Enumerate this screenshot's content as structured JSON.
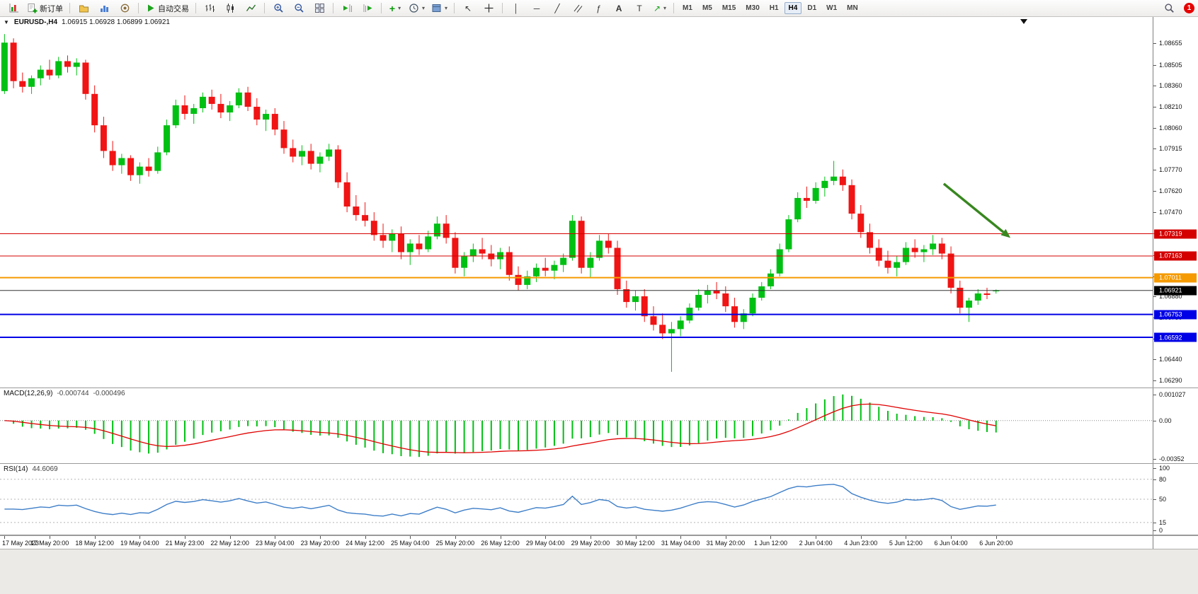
{
  "toolbar": {
    "new_order_label": "新订单",
    "autotrade_label": "自动交易",
    "timeframes": [
      "M1",
      "M5",
      "M15",
      "M30",
      "H1",
      "H4",
      "D1",
      "W1",
      "MN"
    ],
    "active_timeframe": "H4",
    "notification_count": "1"
  },
  "chart_data": {
    "type": "candlestick",
    "header": {
      "symbol": "EURUSD-,H4",
      "ohlc": "1.06915 1.06928 1.06899 1.06921"
    },
    "colors": {
      "up": "#00c013",
      "down": "#f01414",
      "wick_up": "#00c013",
      "wick_down": "#f01414"
    },
    "y_view": [
      1.0624,
      1.0884
    ],
    "y_tick_labels": [
      "1.08655",
      "1.08505",
      "1.08360",
      "1.08210",
      "1.08060",
      "1.07915",
      "1.07770",
      "1.07620",
      "1.07470",
      "1.07320",
      "1.07170",
      "1.07020",
      "1.06880",
      "1.06730",
      "1.06580",
      "1.06440",
      "1.06290"
    ],
    "levels": [
      {
        "price": 1.07319,
        "label": "1.07319",
        "color": "#d40000",
        "width": 1
      },
      {
        "price": 1.07163,
        "label": "1.07163",
        "color": "#d40000",
        "width": 1
      },
      {
        "price": 1.07011,
        "label": "1.07011",
        "color": "#f59a00",
        "width": 2
      },
      {
        "price": 1.06753,
        "label": "1.06753",
        "color": "#0000e6",
        "width": 2
      },
      {
        "price": 1.06592,
        "label": "1.06592",
        "color": "#0000e6",
        "width": 2
      }
    ],
    "current_price": {
      "value": 1.06921,
      "label": "1.06921",
      "line_color": "#333333",
      "badge_color": "#000000"
    },
    "annotation_arrow": {
      "from_index": 104.2,
      "from_price": 1.0767,
      "to_index": 111.6,
      "to_price": 1.0729,
      "color": "#38871f"
    },
    "x_labels": [
      "17 May 2023",
      "17 May 20:00",
      "18 May 12:00",
      "19 May 04:00",
      "21 May 23:00",
      "22 May 12:00",
      "23 May 04:00",
      "23 May 20:00",
      "24 May 12:00",
      "25 May 04:00",
      "25 May 20:00",
      "26 May 12:00",
      "29 May 04:00",
      "29 May 20:00",
      "30 May 12:00",
      "31 May 04:00",
      "31 May 20:00",
      "1 Jun 12:00",
      "2 Jun 04:00",
      "4 Jun 23:00",
      "5 Jun 12:00",
      "6 Jun 04:00",
      "6 Jun 20:00"
    ],
    "x_label_every": 5,
    "candles": [
      [
        1.0832,
        1.0872,
        1.083,
        1.0866
      ],
      [
        1.0866,
        1.0869,
        1.0834,
        1.0839
      ],
      [
        1.0839,
        1.0845,
        1.0831,
        1.0835
      ],
      [
        1.0835,
        1.0843,
        1.083,
        1.0841
      ],
      [
        1.0841,
        1.085,
        1.0836,
        1.0847
      ],
      [
        1.0847,
        1.0854,
        1.084,
        1.0843
      ],
      [
        1.0843,
        1.0856,
        1.0841,
        1.0853
      ],
      [
        1.0853,
        1.0857,
        1.0845,
        1.0849
      ],
      [
        1.0849,
        1.0855,
        1.0843,
        1.0852
      ],
      [
        1.0852,
        1.0854,
        1.0826,
        1.083
      ],
      [
        1.083,
        1.0836,
        1.0803,
        1.0808
      ],
      [
        1.0808,
        1.0814,
        1.0785,
        1.079
      ],
      [
        1.079,
        1.0797,
        1.0776,
        1.078
      ],
      [
        1.078,
        1.0788,
        1.0774,
        1.0785
      ],
      [
        1.0785,
        1.0787,
        1.0769,
        1.0773
      ],
      [
        1.0773,
        1.0782,
        1.0767,
        1.0779
      ],
      [
        1.0779,
        1.0785,
        1.0772,
        1.0776
      ],
      [
        1.0776,
        1.0793,
        1.0774,
        1.0789
      ],
      [
        1.0789,
        1.0812,
        1.0787,
        1.0808
      ],
      [
        1.0808,
        1.0826,
        1.0806,
        1.0822
      ],
      [
        1.0822,
        1.0829,
        1.0812,
        1.0816
      ],
      [
        1.0816,
        1.0823,
        1.0809,
        1.082
      ],
      [
        1.082,
        1.0831,
        1.0817,
        1.0828
      ],
      [
        1.0828,
        1.0833,
        1.0819,
        1.0823
      ],
      [
        1.0823,
        1.083,
        1.0813,
        1.0817
      ],
      [
        1.0817,
        1.0825,
        1.0811,
        1.0822
      ],
      [
        1.0822,
        1.0834,
        1.082,
        1.0831
      ],
      [
        1.0831,
        1.0835,
        1.0818,
        1.0821
      ],
      [
        1.0821,
        1.0827,
        1.0808,
        1.0812
      ],
      [
        1.0812,
        1.0819,
        1.0804,
        1.0816
      ],
      [
        1.0816,
        1.082,
        1.0801,
        1.0805
      ],
      [
        1.0805,
        1.0811,
        1.0788,
        1.0792
      ],
      [
        1.0792,
        1.0798,
        1.0782,
        1.0786
      ],
      [
        1.0786,
        1.0794,
        1.078,
        1.079
      ],
      [
        1.079,
        1.0795,
        1.0777,
        1.0781
      ],
      [
        1.0781,
        1.0789,
        1.0775,
        1.0786
      ],
      [
        1.0786,
        1.0795,
        1.0783,
        1.0791
      ],
      [
        1.0791,
        1.0794,
        1.0764,
        1.0768
      ],
      [
        1.0768,
        1.0775,
        1.0747,
        1.0751
      ],
      [
        1.0751,
        1.0759,
        1.0741,
        1.0745
      ],
      [
        1.0745,
        1.0754,
        1.0737,
        1.0741
      ],
      [
        1.0741,
        1.0747,
        1.0727,
        1.0731
      ],
      [
        1.0731,
        1.0739,
        1.0722,
        1.0727
      ],
      [
        1.0727,
        1.0735,
        1.0719,
        1.0732
      ],
      [
        1.0732,
        1.0737,
        1.0714,
        1.0719
      ],
      [
        1.0719,
        1.0728,
        1.071,
        1.0725
      ],
      [
        1.0725,
        1.0731,
        1.0717,
        1.0721
      ],
      [
        1.0721,
        1.0734,
        1.0719,
        1.073
      ],
      [
        1.073,
        1.0744,
        1.0728,
        1.0739
      ],
      [
        1.0739,
        1.0745,
        1.0725,
        1.0729
      ],
      [
        1.0729,
        1.0733,
        1.0704,
        1.0708
      ],
      [
        1.0708,
        1.0719,
        1.0702,
        1.0716
      ],
      [
        1.0716,
        1.0725,
        1.0712,
        1.0721
      ],
      [
        1.0721,
        1.0729,
        1.0714,
        1.0718
      ],
      [
        1.0718,
        1.0724,
        1.0709,
        1.0714
      ],
      [
        1.0714,
        1.0722,
        1.0707,
        1.0719
      ],
      [
        1.0719,
        1.0723,
        1.0699,
        1.0703
      ],
      [
        1.0703,
        1.0709,
        1.0692,
        1.0696
      ],
      [
        1.0696,
        1.0706,
        1.0693,
        1.0702
      ],
      [
        1.0702,
        1.0711,
        1.0698,
        1.0708
      ],
      [
        1.0708,
        1.0715,
        1.0702,
        1.0706
      ],
      [
        1.0706,
        1.0713,
        1.07,
        1.071
      ],
      [
        1.071,
        1.0718,
        1.0705,
        1.0715
      ],
      [
        1.0715,
        1.0745,
        1.0713,
        1.0741
      ],
      [
        1.0741,
        1.0744,
        1.0704,
        1.0708
      ],
      [
        1.0708,
        1.0719,
        1.0701,
        1.0715
      ],
      [
        1.0715,
        1.0731,
        1.0713,
        1.0727
      ],
      [
        1.0727,
        1.0732,
        1.0718,
        1.0722
      ],
      [
        1.0722,
        1.0727,
        1.0689,
        1.0693
      ],
      [
        1.0693,
        1.0699,
        1.068,
        1.0684
      ],
      [
        1.0684,
        1.0692,
        1.0678,
        1.0688
      ],
      [
        1.0688,
        1.0693,
        1.067,
        1.0674
      ],
      [
        1.0674,
        1.0681,
        1.0664,
        1.0668
      ],
      [
        1.0668,
        1.0676,
        1.0658,
        1.0662
      ],
      [
        1.0662,
        1.067,
        1.0635,
        1.0665
      ],
      [
        1.0665,
        1.0674,
        1.066,
        1.0671
      ],
      [
        1.0671,
        1.0683,
        1.0669,
        1.068
      ],
      [
        1.068,
        1.0693,
        1.0678,
        1.0689
      ],
      [
        1.0689,
        1.0696,
        1.0683,
        1.0692
      ],
      [
        1.0692,
        1.0698,
        1.0686,
        1.069
      ],
      [
        1.069,
        1.0695,
        1.0677,
        1.0681
      ],
      [
        1.0681,
        1.0687,
        1.0666,
        1.067
      ],
      [
        1.067,
        1.0679,
        1.0665,
        1.0676
      ],
      [
        1.0676,
        1.069,
        1.0674,
        1.0687
      ],
      [
        1.0687,
        1.0698,
        1.0685,
        1.0695
      ],
      [
        1.0695,
        1.0707,
        1.0693,
        1.0704
      ],
      [
        1.0704,
        1.0725,
        1.0702,
        1.0721
      ],
      [
        1.0721,
        1.0745,
        1.0719,
        1.0742
      ],
      [
        1.0742,
        1.0761,
        1.074,
        1.0757
      ],
      [
        1.0757,
        1.0765,
        1.075,
        1.0755
      ],
      [
        1.0755,
        1.0768,
        1.0753,
        1.0764
      ],
      [
        1.0764,
        1.0772,
        1.0758,
        1.0769
      ],
      [
        1.0769,
        1.0783,
        1.0766,
        1.0772
      ],
      [
        1.0772,
        1.0777,
        1.0762,
        1.0766
      ],
      [
        1.0766,
        1.077,
        1.0742,
        1.0746
      ],
      [
        1.0746,
        1.0752,
        1.0729,
        1.0733
      ],
      [
        1.0733,
        1.0739,
        1.0718,
        1.0722
      ],
      [
        1.0722,
        1.0728,
        1.0709,
        1.0713
      ],
      [
        1.0713,
        1.072,
        1.0704,
        1.0708
      ],
      [
        1.0708,
        1.0716,
        1.0702,
        1.0712
      ],
      [
        1.0712,
        1.0726,
        1.071,
        1.0722
      ],
      [
        1.0722,
        1.0728,
        1.0715,
        1.0719
      ],
      [
        1.0719,
        1.0724,
        1.0712,
        1.0721
      ],
      [
        1.0721,
        1.0731,
        1.0717,
        1.0725
      ],
      [
        1.0725,
        1.0729,
        1.0714,
        1.0718
      ],
      [
        1.0718,
        1.0723,
        1.069,
        1.0694
      ],
      [
        1.0694,
        1.0699,
        1.0676,
        1.068
      ],
      [
        1.068,
        1.0687,
        1.067,
        1.0685
      ],
      [
        1.0685,
        1.0693,
        1.0682,
        1.069
      ],
      [
        1.069,
        1.0694,
        1.0686,
        1.0689
      ],
      [
        1.06915,
        1.06928,
        1.06899,
        1.06921
      ]
    ],
    "indicators": [
      {
        "type": "macd_histogram",
        "label": "MACD(12,26,9)",
        "value_main": "-0.000744",
        "value_signal": "-0.000496",
        "params": [
          12,
          26,
          9
        ],
        "hist_color": "#00c013",
        "signal_color": "#e00000",
        "scale_labels": {
          "max": "0.001027",
          "zero": "0.00",
          "min": "-0.00352"
        }
      },
      {
        "type": "rsi",
        "label": "RSI(14)",
        "value": "44.6069",
        "period": 14,
        "line_color": "#3d7ec8",
        "scale_labels": [
          "100",
          "80",
          "50",
          "15",
          "0"
        ],
        "levels": [
          80,
          50,
          15
        ]
      }
    ]
  }
}
